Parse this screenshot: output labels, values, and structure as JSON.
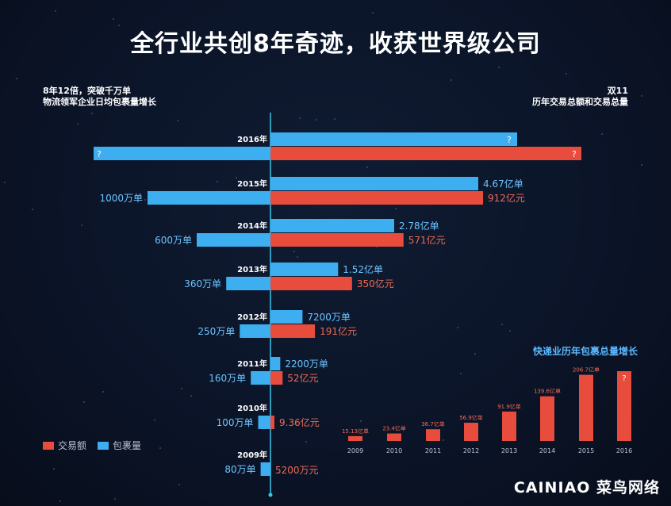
{
  "title": "全行业共创8年奇迹，收获世界级公司",
  "left_note": {
    "line1": "8年12倍，突破千万单",
    "line2": "物流领军企业日均包裹量增长"
  },
  "right_note": {
    "line1": "双11",
    "line2": "历年交易总额和交易总量"
  },
  "legend": {
    "red": "交易额",
    "blue": "包裹量"
  },
  "colors": {
    "red": "#e84c3d",
    "blue": "#3daef0",
    "axis": "#3bc6ee"
  },
  "small_chart_title": "快递业历年包裹总量增长",
  "logo": "CAINIAO 菜鸟网络",
  "chart_data": [
    {
      "type": "bar",
      "title": "双11 历年交易总额和交易总量 / 物流领军企业日均包裹量增长",
      "categories": [
        "2016年",
        "2015年",
        "2014年",
        "2013年",
        "2012年",
        "2011年",
        "2010年",
        "2009年"
      ],
      "series": [
        {
          "name": "交易总量",
          "color": "blue",
          "side": "right",
          "values": [
            null,
            4.67,
            2.78,
            1.52,
            0.72,
            0.22,
            null,
            null
          ],
          "labels": [
            "?",
            "4.67亿单",
            "2.78亿单",
            "1.52亿单",
            "7200万单",
            "2200万单",
            "",
            ""
          ]
        },
        {
          "name": "交易额",
          "color": "red",
          "side": "right",
          "values": [
            null,
            912,
            571,
            350,
            191,
            52,
            9.36,
            0.52
          ],
          "labels": [
            "?",
            "912亿元",
            "571亿元",
            "350亿元",
            "191亿元",
            "52亿元",
            "9.36亿元",
            "5200万元"
          ]
        },
        {
          "name": "包裹量",
          "color": "blue",
          "side": "left",
          "values": [
            null,
            1000,
            600,
            360,
            250,
            160,
            100,
            80
          ],
          "labels": [
            "?",
            "1000万单",
            "600万单",
            "360万单",
            "250万单",
            "160万单",
            "100万单",
            "80万单"
          ]
        }
      ]
    },
    {
      "type": "bar",
      "title": "快递业历年包裹总量增长",
      "categories": [
        "2009",
        "2010",
        "2011",
        "2012",
        "2013",
        "2014",
        "2015",
        "2016"
      ],
      "values": [
        15.13,
        23.4,
        36.7,
        56.9,
        91.9,
        139.6,
        206.7,
        null
      ],
      "labels": [
        "15.13亿单",
        "23.4亿单",
        "36.7亿单",
        "56.9亿单",
        "91.9亿单",
        "139.6亿单",
        "206.7亿单",
        "?"
      ]
    }
  ]
}
